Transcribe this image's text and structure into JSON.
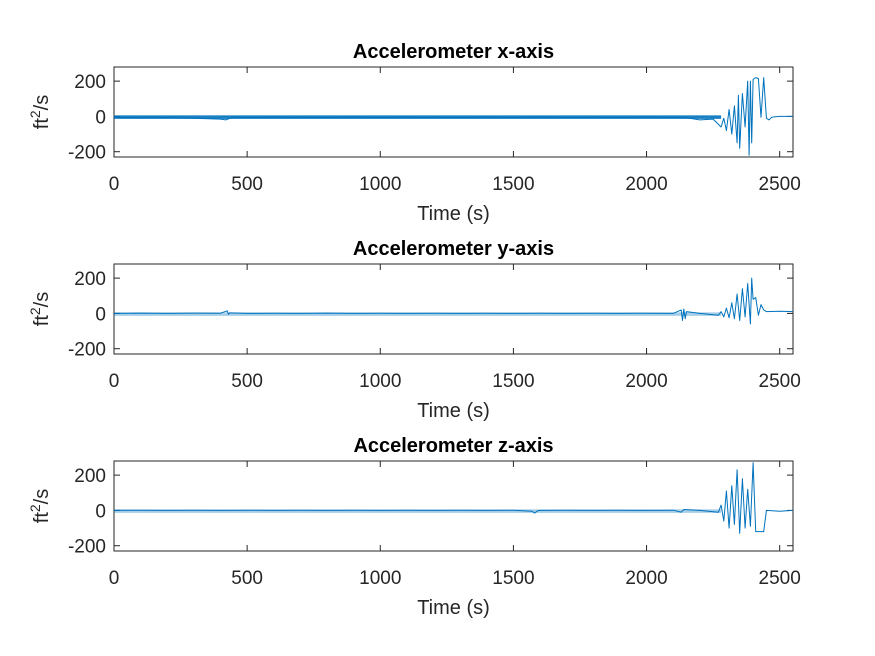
{
  "figure": {
    "background": "#ffffff"
  },
  "chart_data": [
    {
      "type": "line",
      "title": "Accelerometer x-axis",
      "xlabel": "Time (s)",
      "ylabel_base": "ft",
      "ylabel_exp": "2",
      "ylabel_tail": "/s",
      "xlim": [
        0,
        2550
      ],
      "ylim": [
        -230,
        280
      ],
      "xticks": [
        0,
        500,
        1000,
        1500,
        2000,
        2500
      ],
      "yticks": [
        -200,
        0,
        200
      ],
      "grid": false,
      "color": "#0072bd",
      "series": [
        {
          "x": [
            0,
            100,
            200,
            300,
            400,
            420,
            440,
            500,
            600,
            700,
            800,
            900,
            1000,
            1100,
            1200,
            1300,
            1400,
            1500,
            1600,
            1700,
            1800,
            1900,
            2000,
            2100,
            2150,
            2200,
            2250,
            2280,
            2290,
            2300,
            2310,
            2320,
            2330,
            2340,
            2345,
            2350,
            2360,
            2370,
            2380,
            2385,
            2390,
            2395,
            2400,
            2410,
            2420,
            2430,
            2440,
            2450,
            2460,
            2470,
            2480,
            2500,
            2550
          ],
          "y": [
            -5,
            -8,
            -6,
            -10,
            -15,
            -20,
            -8,
            -6,
            -5,
            -7,
            -6,
            -5,
            -6,
            -5,
            -7,
            -6,
            -5,
            -6,
            -5,
            -6,
            -7,
            -6,
            -5,
            -6,
            -8,
            -20,
            -15,
            -60,
            -10,
            -80,
            40,
            -100,
            60,
            -150,
            120,
            -180,
            130,
            -60,
            200,
            -220,
            200,
            -150,
            210,
            220,
            215,
            -5,
            220,
            -10,
            -20,
            -5,
            -3,
            0,
            0
          ]
        }
      ]
    },
    {
      "type": "line",
      "title": "Accelerometer y-axis",
      "xlabel": "Time (s)",
      "ylabel_base": "ft",
      "ylabel_exp": "2",
      "ylabel_tail": "/s",
      "xlim": [
        0,
        2550
      ],
      "ylim": [
        -230,
        280
      ],
      "xticks": [
        0,
        500,
        1000,
        1500,
        2000,
        2500
      ],
      "yticks": [
        -200,
        0,
        200
      ],
      "grid": false,
      "color": "#0072bd",
      "series": [
        {
          "x": [
            0,
            100,
            200,
            300,
            400,
            425,
            430,
            435,
            500,
            600,
            700,
            800,
            900,
            1000,
            1100,
            1200,
            1300,
            1400,
            1500,
            1600,
            1700,
            1800,
            1900,
            2000,
            2100,
            2130,
            2135,
            2140,
            2145,
            2150,
            2200,
            2270,
            2280,
            2290,
            2300,
            2310,
            2320,
            2330,
            2340,
            2350,
            2360,
            2370,
            2380,
            2390,
            2395,
            2400,
            2410,
            2420,
            2430,
            2440,
            2450,
            2500,
            2550
          ],
          "y": [
            0,
            2,
            0,
            2,
            1,
            15,
            -5,
            3,
            0,
            1,
            0,
            2,
            0,
            1,
            0,
            1,
            0,
            1,
            0,
            1,
            0,
            1,
            0,
            1,
            0,
            20,
            -40,
            25,
            -30,
            10,
            0,
            -10,
            10,
            -20,
            30,
            -25,
            60,
            -30,
            110,
            -40,
            140,
            -20,
            170,
            -60,
            200,
            80,
            90,
            -10,
            50,
            20,
            10,
            12,
            10
          ]
        }
      ]
    },
    {
      "type": "line",
      "title": "Accelerometer z-axis",
      "xlabel": "Time (s)",
      "ylabel_base": "ft",
      "ylabel_exp": "2",
      "ylabel_tail": "/s",
      "xlim": [
        0,
        2550
      ],
      "ylim": [
        -230,
        280
      ],
      "xticks": [
        0,
        500,
        1000,
        1500,
        2000,
        2500
      ],
      "yticks": [
        -200,
        0,
        200
      ],
      "grid": false,
      "color": "#0072bd",
      "series": [
        {
          "x": [
            0,
            100,
            200,
            300,
            400,
            500,
            600,
            700,
            800,
            900,
            1000,
            1100,
            1200,
            1300,
            1400,
            1500,
            1570,
            1580,
            1590,
            1600,
            1700,
            1800,
            1900,
            2000,
            2100,
            2130,
            2140,
            2200,
            2270,
            2280,
            2290,
            2300,
            2310,
            2320,
            2330,
            2340,
            2350,
            2360,
            2370,
            2380,
            2390,
            2400,
            2410,
            2420,
            2440,
            2450,
            2500,
            2550
          ],
          "y": [
            0,
            1,
            0,
            1,
            0,
            1,
            0,
            1,
            0,
            1,
            0,
            1,
            0,
            1,
            0,
            1,
            -5,
            -15,
            -3,
            0,
            1,
            0,
            1,
            0,
            1,
            -10,
            5,
            0,
            -10,
            30,
            -60,
            110,
            -100,
            140,
            -80,
            230,
            -130,
            180,
            -100,
            120,
            -90,
            270,
            -120,
            -120,
            -120,
            0,
            -5,
            0
          ]
        }
      ]
    }
  ]
}
